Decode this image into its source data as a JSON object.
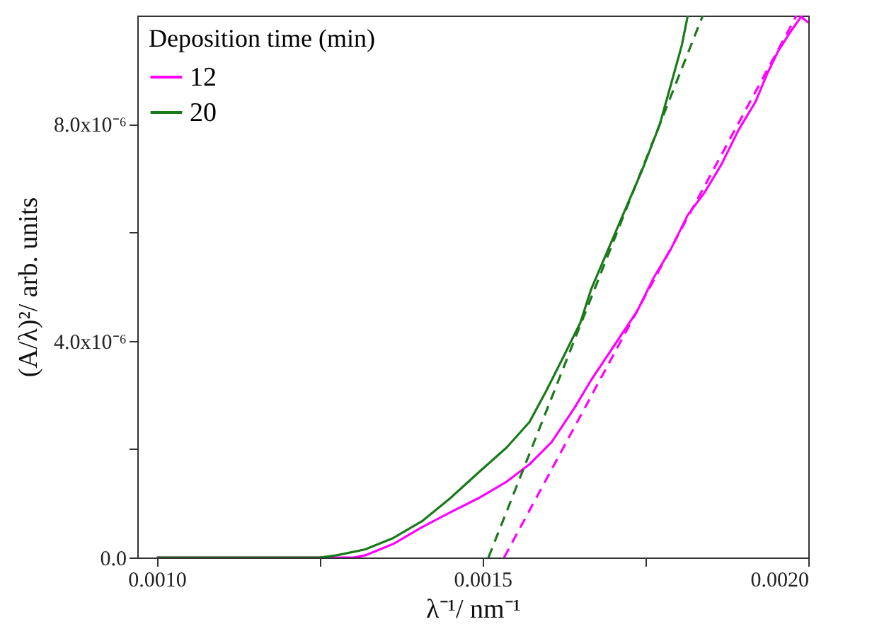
{
  "chart_data": {
    "type": "line",
    "xlabel": "λ⁻¹/ nm⁻¹",
    "ylabel": "(A/λ)²/ arb. units",
    "legend_title": "Deposition time (min)",
    "legend": "top left",
    "xlim": [
      0.00097,
      0.002
    ],
    "ylim": [
      0,
      1e-05
    ],
    "xticks": [
      {
        "value": 0.001,
        "label": "0.0010"
      },
      {
        "value": 0.00125,
        "label": null
      },
      {
        "value": 0.0015,
        "label": "0.0015"
      },
      {
        "value": 0.00175,
        "label": null
      },
      {
        "value": 0.002,
        "label": "0.0020"
      }
    ],
    "yticks": [
      {
        "value": 0,
        "label": "0.0"
      },
      {
        "value": 2e-06,
        "label": null
      },
      {
        "value": 4e-06,
        "label": "4.0x10⁻⁶"
      },
      {
        "value": 6e-06,
        "label": null
      },
      {
        "value": 8e-06,
        "label": "8.0x10⁻⁶"
      }
    ],
    "series": [
      {
        "name": "12",
        "color": "#ff00ff",
        "line_style": "solid",
        "x": [
          0.001,
          0.00125,
          0.001302,
          0.00132,
          0.001363,
          0.001407,
          0.00145,
          0.001493,
          0.001537,
          0.001572,
          0.001606,
          0.001641,
          0.001667,
          0.001702,
          0.001737,
          0.001763,
          0.001789,
          0.001815,
          0.001841,
          0.001867,
          0.001893,
          0.001919,
          0.001937,
          0.001954,
          0.001971,
          0.001989,
          0.002
        ],
        "values": [
          0,
          0,
          0,
          4e-08,
          2.5e-07,
          5.6e-07,
          8.3e-07,
          1.09e-06,
          1.4e-06,
          1.72e-06,
          2.13e-06,
          2.76e-06,
          3.28e-06,
          3.91e-06,
          4.54e-06,
          5.17e-06,
          5.69e-06,
          6.32e-06,
          6.74e-06,
          7.26e-06,
          7.89e-06,
          8.41e-06,
          8.93e-06,
          9.35e-06,
          9.67e-06,
          9.98e-06,
          9.87e-06
        ]
      },
      {
        "name": "20",
        "color": "#1a7a1a",
        "line_style": "solid",
        "x": [
          0.001,
          0.00125,
          0.001276,
          0.00132,
          0.001363,
          0.001407,
          0.00145,
          0.001493,
          0.001537,
          0.001572,
          0.001598,
          0.001624,
          0.00165,
          0.001667,
          0.001693,
          0.001719,
          0.001745,
          0.001772,
          0.001789,
          0.001806,
          0.001815
        ],
        "values": [
          0,
          0,
          4e-08,
          1.5e-07,
          3.6e-07,
          6.7e-07,
          1.09e-06,
          1.56e-06,
          2.03e-06,
          2.5e-06,
          3.08e-06,
          3.7e-06,
          4.33e-06,
          4.96e-06,
          5.69e-06,
          6.42e-06,
          7.15e-06,
          7.99e-06,
          8.72e-06,
          9.46e-06,
          1e-05
        ]
      },
      {
        "type": "line",
        "color": "#ff00ff",
        "line_style": "dashed",
        "x": [
          0.001533,
          0.001982
        ],
        "values": [
          0,
          1e-05
        ]
      },
      {
        "type": "line",
        "color": "#1a7a1a",
        "line_style": "dashed",
        "x": [
          0.001509,
          0.001838
        ],
        "values": [
          0,
          1e-05
        ]
      }
    ]
  }
}
